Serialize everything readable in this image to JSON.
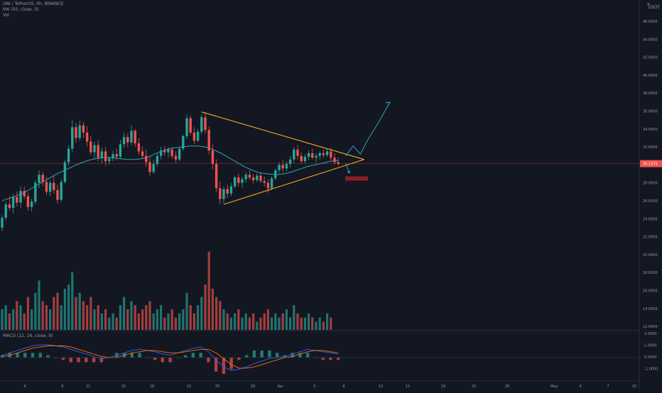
{
  "header": {
    "title": "UNI / TetherUS, 4h, BINANCE",
    "ma_label": "MA (50, close, 0)",
    "vol_label": "Vol",
    "currency": "USDT"
  },
  "macd_panel": {
    "label": "MACD (12, 26, close, 9)"
  },
  "price_axis": {
    "ticks": [
      "46.0000",
      "44.0000",
      "42.0000",
      "40.0000",
      "38.0000",
      "36.0000",
      "34.0000",
      "32.0000",
      "30.0000",
      "28.0000",
      "26.0000",
      "24.0000",
      "22.0000",
      "20.0000",
      "18.0000",
      "16.0000",
      "14.0000",
      "12.0000"
    ],
    "last_price": "30.1375"
  },
  "macd_axis": {
    "ticks": [
      "2.0000",
      "1.0000",
      "0.0000",
      "-1.0000"
    ]
  },
  "time_axis": {
    "labels": [
      "4",
      "8",
      "11",
      "15",
      "18",
      "22",
      "25",
      "29",
      "Apr",
      "5",
      "8",
      "12",
      "15",
      "19",
      "22",
      "26",
      "May",
      "4",
      "7",
      "10"
    ]
  },
  "colors": {
    "background": "#131722",
    "up": "#26a69a",
    "down": "#ef5350",
    "ma": "#2aa7b8",
    "pattern": "#f5a623",
    "projection": "#2aa7b8",
    "price_line": "#ef5350"
  },
  "chart_data": {
    "type": "candlestick",
    "symbol": "UNI / TetherUS",
    "interval": "4h",
    "exchange": "BINANCE",
    "price_range": [
      21,
      47
    ],
    "last_price": 30.1375,
    "candles": [
      {
        "o": 23.0,
        "h": 24.4,
        "l": 22.6,
        "c": 24.1
      },
      {
        "o": 24.1,
        "h": 25.9,
        "l": 23.8,
        "c": 25.6
      },
      {
        "o": 25.6,
        "h": 26.5,
        "l": 24.9,
        "c": 25.2
      },
      {
        "o": 25.2,
        "h": 26.8,
        "l": 24.6,
        "c": 26.4
      },
      {
        "o": 26.4,
        "h": 27.0,
        "l": 25.4,
        "c": 25.8
      },
      {
        "o": 25.8,
        "h": 27.6,
        "l": 25.2,
        "c": 27.1
      },
      {
        "o": 27.1,
        "h": 27.6,
        "l": 26.2,
        "c": 26.5
      },
      {
        "o": 26.5,
        "h": 26.9,
        "l": 24.9,
        "c": 25.3
      },
      {
        "o": 25.3,
        "h": 26.2,
        "l": 24.8,
        "c": 25.9
      },
      {
        "o": 25.9,
        "h": 28.3,
        "l": 25.6,
        "c": 28.0
      },
      {
        "o": 28.0,
        "h": 29.4,
        "l": 27.4,
        "c": 28.9
      },
      {
        "o": 28.9,
        "h": 29.2,
        "l": 27.6,
        "c": 28.1
      },
      {
        "o": 28.1,
        "h": 28.7,
        "l": 26.6,
        "c": 27.0
      },
      {
        "o": 27.0,
        "h": 28.3,
        "l": 26.5,
        "c": 28.0
      },
      {
        "o": 28.0,
        "h": 28.8,
        "l": 26.8,
        "c": 27.2
      },
      {
        "o": 27.2,
        "h": 27.8,
        "l": 25.7,
        "c": 26.1
      },
      {
        "o": 26.1,
        "h": 28.4,
        "l": 25.9,
        "c": 28.1
      },
      {
        "o": 28.1,
        "h": 30.6,
        "l": 27.9,
        "c": 30.3
      },
      {
        "o": 30.3,
        "h": 32.2,
        "l": 29.9,
        "c": 31.8
      },
      {
        "o": 31.8,
        "h": 35.0,
        "l": 31.4,
        "c": 34.2
      },
      {
        "o": 34.2,
        "h": 34.7,
        "l": 32.5,
        "c": 33.0
      },
      {
        "o": 33.0,
        "h": 34.9,
        "l": 32.7,
        "c": 34.4
      },
      {
        "o": 34.4,
        "h": 34.8,
        "l": 33.0,
        "c": 33.6
      },
      {
        "o": 33.6,
        "h": 34.3,
        "l": 32.1,
        "c": 32.6
      },
      {
        "o": 32.6,
        "h": 33.2,
        "l": 31.1,
        "c": 31.4
      },
      {
        "o": 31.4,
        "h": 32.6,
        "l": 30.7,
        "c": 32.2
      },
      {
        "o": 32.2,
        "h": 32.8,
        "l": 30.4,
        "c": 30.8
      },
      {
        "o": 30.8,
        "h": 31.9,
        "l": 30.2,
        "c": 31.5
      },
      {
        "o": 31.5,
        "h": 32.0,
        "l": 29.9,
        "c": 30.4
      },
      {
        "o": 30.4,
        "h": 31.0,
        "l": 30.0,
        "c": 30.7
      },
      {
        "o": 30.7,
        "h": 31.6,
        "l": 30.4,
        "c": 31.2
      },
      {
        "o": 31.2,
        "h": 31.8,
        "l": 30.5,
        "c": 30.9
      },
      {
        "o": 30.9,
        "h": 32.8,
        "l": 30.6,
        "c": 32.3
      },
      {
        "o": 32.3,
        "h": 33.6,
        "l": 31.9,
        "c": 33.1
      },
      {
        "o": 33.1,
        "h": 33.5,
        "l": 32.0,
        "c": 32.5
      },
      {
        "o": 32.5,
        "h": 34.4,
        "l": 32.2,
        "c": 33.8
      },
      {
        "o": 33.8,
        "h": 34.0,
        "l": 32.0,
        "c": 32.4
      },
      {
        "o": 32.4,
        "h": 33.0,
        "l": 31.1,
        "c": 31.5
      },
      {
        "o": 31.5,
        "h": 32.1,
        "l": 30.7,
        "c": 31.0
      },
      {
        "o": 31.0,
        "h": 31.7,
        "l": 29.8,
        "c": 30.3
      },
      {
        "o": 30.3,
        "h": 30.9,
        "l": 28.8,
        "c": 29.2
      },
      {
        "o": 29.2,
        "h": 30.6,
        "l": 29.0,
        "c": 30.1
      },
      {
        "o": 30.1,
        "h": 31.3,
        "l": 29.8,
        "c": 31.0
      },
      {
        "o": 31.0,
        "h": 32.0,
        "l": 30.6,
        "c": 31.6
      },
      {
        "o": 31.6,
        "h": 32.1,
        "l": 31.0,
        "c": 31.4
      },
      {
        "o": 31.4,
        "h": 32.0,
        "l": 30.8,
        "c": 31.7
      },
      {
        "o": 31.7,
        "h": 32.0,
        "l": 30.7,
        "c": 31.0
      },
      {
        "o": 31.0,
        "h": 31.5,
        "l": 30.2,
        "c": 30.6
      },
      {
        "o": 30.6,
        "h": 32.0,
        "l": 30.4,
        "c": 31.8
      },
      {
        "o": 31.8,
        "h": 33.4,
        "l": 31.6,
        "c": 33.2
      },
      {
        "o": 33.2,
        "h": 35.6,
        "l": 32.9,
        "c": 35.2
      },
      {
        "o": 35.2,
        "h": 35.5,
        "l": 33.3,
        "c": 33.6
      },
      {
        "o": 33.6,
        "h": 34.2,
        "l": 32.3,
        "c": 32.7
      },
      {
        "o": 32.7,
        "h": 34.0,
        "l": 32.5,
        "c": 33.7
      },
      {
        "o": 33.7,
        "h": 35.6,
        "l": 33.4,
        "c": 35.3
      },
      {
        "o": 35.3,
        "h": 35.9,
        "l": 33.5,
        "c": 33.9
      },
      {
        "o": 33.9,
        "h": 34.3,
        "l": 31.2,
        "c": 31.6
      },
      {
        "o": 31.6,
        "h": 32.3,
        "l": 29.5,
        "c": 30.1
      },
      {
        "o": 30.1,
        "h": 30.6,
        "l": 27.0,
        "c": 27.4
      },
      {
        "o": 27.4,
        "h": 28.2,
        "l": 25.6,
        "c": 26.2
      },
      {
        "o": 26.2,
        "h": 27.6,
        "l": 25.7,
        "c": 27.3
      },
      {
        "o": 27.3,
        "h": 27.8,
        "l": 26.3,
        "c": 26.8
      },
      {
        "o": 26.8,
        "h": 28.0,
        "l": 26.5,
        "c": 27.6
      },
      {
        "o": 27.6,
        "h": 28.8,
        "l": 27.4,
        "c": 28.6
      },
      {
        "o": 28.6,
        "h": 29.0,
        "l": 27.6,
        "c": 28.0
      },
      {
        "o": 28.0,
        "h": 28.7,
        "l": 27.4,
        "c": 28.4
      },
      {
        "o": 28.4,
        "h": 29.2,
        "l": 28.0,
        "c": 28.9
      },
      {
        "o": 28.9,
        "h": 29.4,
        "l": 28.3,
        "c": 28.6
      },
      {
        "o": 28.6,
        "h": 29.0,
        "l": 27.9,
        "c": 28.3
      },
      {
        "o": 28.3,
        "h": 29.1,
        "l": 28.1,
        "c": 28.8
      },
      {
        "o": 28.8,
        "h": 29.2,
        "l": 28.0,
        "c": 28.2
      },
      {
        "o": 28.2,
        "h": 28.7,
        "l": 27.6,
        "c": 28.0
      },
      {
        "o": 28.0,
        "h": 28.4,
        "l": 26.9,
        "c": 27.4
      },
      {
        "o": 27.4,
        "h": 28.7,
        "l": 27.2,
        "c": 28.5
      },
      {
        "o": 28.5,
        "h": 29.6,
        "l": 28.3,
        "c": 29.4
      },
      {
        "o": 29.4,
        "h": 30.3,
        "l": 29.1,
        "c": 30.0
      },
      {
        "o": 30.0,
        "h": 30.6,
        "l": 29.2,
        "c": 29.6
      },
      {
        "o": 29.6,
        "h": 30.4,
        "l": 29.3,
        "c": 30.1
      },
      {
        "o": 30.1,
        "h": 31.0,
        "l": 29.7,
        "c": 30.6
      },
      {
        "o": 30.6,
        "h": 32.0,
        "l": 30.2,
        "c": 31.7
      },
      {
        "o": 31.7,
        "h": 32.2,
        "l": 30.6,
        "c": 31.0
      },
      {
        "o": 31.0,
        "h": 31.4,
        "l": 30.1,
        "c": 30.4
      },
      {
        "o": 30.4,
        "h": 31.2,
        "l": 30.2,
        "c": 30.9
      },
      {
        "o": 30.9,
        "h": 31.6,
        "l": 30.5,
        "c": 31.3
      },
      {
        "o": 31.3,
        "h": 31.8,
        "l": 30.6,
        "c": 30.8
      },
      {
        "o": 30.8,
        "h": 31.3,
        "l": 30.3,
        "c": 31.0
      },
      {
        "o": 31.0,
        "h": 31.5,
        "l": 30.6,
        "c": 31.3
      },
      {
        "o": 31.3,
        "h": 31.7,
        "l": 30.8,
        "c": 31.1
      },
      {
        "o": 31.1,
        "h": 31.8,
        "l": 30.9,
        "c": 31.5
      },
      {
        "o": 31.5,
        "h": 31.9,
        "l": 30.5,
        "c": 30.8
      },
      {
        "o": 30.8,
        "h": 31.3,
        "l": 30.0,
        "c": 30.3
      },
      {
        "o": 30.3,
        "h": 30.8,
        "l": 29.9,
        "c": 30.1
      }
    ],
    "volume_range": [
      0,
      20
    ],
    "volume": [
      5,
      6,
      4,
      5,
      7,
      6,
      4,
      8,
      5,
      9,
      12,
      7,
      6,
      5,
      8,
      9,
      6,
      10,
      11,
      14,
      8,
      9,
      7,
      6,
      8,
      5,
      6,
      4,
      5,
      3,
      4,
      3,
      6,
      8,
      5,
      7,
      6,
      4,
      5,
      6,
      7,
      4,
      5,
      6,
      3,
      4,
      5,
      3,
      4,
      5,
      9,
      6,
      4,
      6,
      8,
      11,
      19,
      10,
      8,
      7,
      5,
      4,
      3,
      4,
      5,
      3,
      4,
      3,
      4,
      2,
      3,
      4,
      5,
      3,
      4,
      3,
      4,
      5,
      3,
      6,
      4,
      3,
      3,
      4,
      3,
      2,
      3,
      2,
      4,
      3
    ],
    "ma_values": [
      26.0,
      26.3,
      26.6,
      27.0,
      27.5,
      28.0,
      28.5,
      29.0,
      29.4,
      29.8,
      30.2,
      30.5,
      30.7,
      30.8,
      30.8,
      30.7,
      30.6,
      30.6,
      30.7,
      31.0,
      31.4,
      31.7,
      31.9,
      32.0,
      32.1,
      32.1,
      32.0,
      31.7,
      31.3,
      30.8,
      30.3,
      29.8,
      29.4,
      29.1,
      29.0,
      28.9,
      29.0,
      29.2,
      29.5,
      29.8,
      30.0,
      30.2,
      30.4,
      30.5
    ],
    "macd": {
      "range": [
        -1.6,
        2.0
      ],
      "macd_line": [
        0.2,
        0.4,
        0.6,
        0.8,
        1.0,
        1.1,
        1.1,
        1.0,
        0.9,
        0.7,
        0.5,
        0.3,
        0.1,
        -0.1,
        0.0,
        0.2,
        0.4,
        0.6,
        0.7,
        0.6,
        0.5,
        0.3,
        0.2,
        0.4,
        0.6,
        0.8,
        0.9,
        0.5,
        -0.2,
        -0.8,
        -1.1,
        -1.0,
        -0.8,
        -0.5,
        -0.3,
        -0.1,
        0.0,
        0.1,
        0.3,
        0.5,
        0.7,
        0.6,
        0.5,
        0.4,
        0.3
      ],
      "signal_line": [
        0.1,
        0.2,
        0.4,
        0.6,
        0.8,
        0.9,
        1.0,
        1.0,
        1.0,
        0.9,
        0.7,
        0.5,
        0.3,
        0.1,
        0.0,
        0.0,
        0.2,
        0.4,
        0.5,
        0.6,
        0.6,
        0.5,
        0.4,
        0.4,
        0.5,
        0.6,
        0.7,
        0.7,
        0.4,
        -0.1,
        -0.6,
        -0.9,
        -0.9,
        -0.8,
        -0.6,
        -0.4,
        -0.2,
        0.0,
        0.1,
        0.3,
        0.5,
        0.6,
        0.6,
        0.5,
        0.4
      ]
    },
    "annotations": {
      "triangle_upper": [
        {
          "i": 54,
          "p": 35.9
        },
        {
          "i": 98,
          "p": 30.6
        }
      ],
      "triangle_lower": [
        {
          "i": 60,
          "p": 25.6
        },
        {
          "i": 98,
          "p": 30.6
        }
      ],
      "breakout_path": [
        {
          "i": 93,
          "p": 31.0
        },
        {
          "i": 95,
          "p": 32.1
        },
        {
          "i": 97,
          "p": 31.2
        },
        {
          "i": 99,
          "p": 32.8
        },
        {
          "i": 102,
          "p": 34.8
        },
        {
          "i": 105,
          "p": 37.0
        }
      ],
      "breakdown_arrow": [
        {
          "i": 93,
          "p": 30.2
        },
        {
          "i": 94,
          "p": 29.1
        }
      ]
    }
  }
}
